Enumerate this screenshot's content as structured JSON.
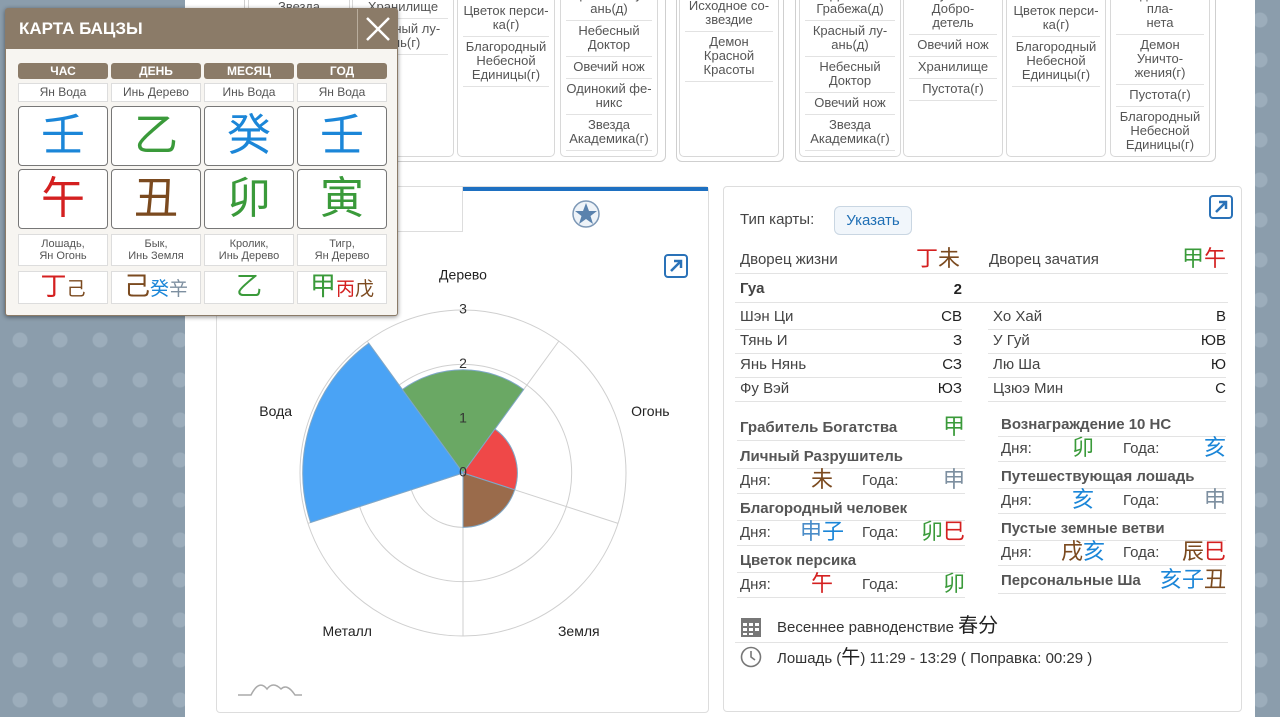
{
  "top_stars": {
    "columns": [
      [
        "Звезда"
      ],
      [
        "Хранилище",
        "Красный лу-\nань(г)"
      ],
      [
        "Цветок перси-\nка(г)",
        "Благородный\nНебесной\nЕдиницы(г)"
      ],
      [
        "Красный лу-\nань(д)",
        "Небесный\nДоктор",
        "Овечий нож",
        "Одинокий фе-\nникс",
        "Звезда\nАкадемика(г)"
      ],
      [
        "Исходное со-\nзвездие",
        "Демон\nКрасной\nКрасоты"
      ],
      [
        "Демон\nГрабежа(д)",
        "Красный лу-\nань(д)",
        "Небесный\nДоктор",
        "Овечий нож",
        "Звезда\nАкадемика(г)"
      ],
      [
        "Лунная Добро-\nдетель",
        "Овечий нож",
        "Хранилище",
        "Пустота(г)"
      ],
      [
        "Цветок перси-\nка(г)",
        "Благородный\nНебесной\nЕдиницы(г)"
      ],
      [
        "Одинокая пла-\nнета",
        "Демон Уничто-\nжения(г)",
        "Пустота(г)",
        "Благородный\nНебесной\nЕдиницы(г)"
      ]
    ]
  },
  "bazi": {
    "title": "КАРТА БАЦЗЫ",
    "pillars": [
      {
        "header": "ЧАС",
        "stem_name": "Ян Вода",
        "stem": {
          "t": "壬",
          "c": "#1b86d8"
        },
        "branch": {
          "t": "午",
          "c": "#d42020"
        },
        "branch_name": "Лошадь,\nЯн Огонь",
        "hidden": [
          {
            "t": "丁",
            "c": "#d42020"
          },
          {
            "t": "己",
            "c": "#7b4a1f"
          }
        ]
      },
      {
        "header": "ДЕНЬ",
        "stem_name": "Инь Дерево",
        "stem": {
          "t": "乙",
          "c": "#3a9a3a"
        },
        "branch": {
          "t": "丑",
          "c": "#7b4a1f"
        },
        "branch_name": "Бык,\nИнь Земля",
        "hidden": [
          {
            "t": "己",
            "c": "#7b4a1f"
          },
          {
            "t": "癸",
            "c": "#1b86d8"
          },
          {
            "t": "辛",
            "c": "#7d8fa0"
          }
        ]
      },
      {
        "header": "МЕСЯЦ",
        "stem_name": "Инь Вода",
        "stem": {
          "t": "癸",
          "c": "#1b86d8"
        },
        "branch": {
          "t": "卯",
          "c": "#3a9a3a"
        },
        "branch_name": "Кролик,\nИнь Дерево",
        "hidden": [
          {
            "t": "乙",
            "c": "#3a9a3a"
          }
        ]
      },
      {
        "header": "ГОД",
        "stem_name": "Ян Вода",
        "stem": {
          "t": "壬",
          "c": "#1b86d8"
        },
        "branch": {
          "t": "寅",
          "c": "#3a9a3a"
        },
        "branch_name": "Тигр,\nЯн Дерево",
        "hidden": [
          {
            "t": "甲",
            "c": "#3a9a3a"
          },
          {
            "t": "丙",
            "c": "#d42020"
          },
          {
            "t": "戊",
            "c": "#7b4a1f"
          }
        ]
      }
    ]
  },
  "chart_data": {
    "type": "polar",
    "categories": [
      "Дерево",
      "Огонь",
      "Земля",
      "Металл",
      "Вода"
    ],
    "values": [
      1.9,
      1,
      1,
      0,
      2.95
    ],
    "colors": [
      "#6aa864",
      "#ef4848",
      "#9a6b4b",
      "#9e9e9e",
      "#4aa3f5"
    ],
    "rlim": [
      0,
      3
    ],
    "rticks": [
      0,
      1,
      2,
      3
    ],
    "grid": true
  },
  "right": {
    "chart_type_label": "Тип карты:",
    "chart_type_button": "Указать",
    "palaces": [
      {
        "label": "Дворец жизни",
        "glyphs": [
          {
            "t": "丁",
            "c": "#d42020"
          },
          {
            "t": "未",
            "c": "#7b4a1f"
          }
        ]
      },
      {
        "label": "Дворец зачатия",
        "glyphs": [
          {
            "t": "甲",
            "c": "#3a9a3a"
          },
          {
            "t": "午",
            "c": "#d42020"
          }
        ]
      }
    ],
    "gua": {
      "label": "Гуа",
      "value": 2
    },
    "directions": [
      {
        "name": "Шэн Ци",
        "dir": "СВ"
      },
      {
        "name": "Хо Хай",
        "dir": "В"
      },
      {
        "name": "Тянь И",
        "dir": "З"
      },
      {
        "name": "У Гуй",
        "dir": "ЮВ"
      },
      {
        "name": "Янь Нянь",
        "dir": "СЗ"
      },
      {
        "name": "Лю Ша",
        "dir": "Ю"
      },
      {
        "name": "Фу Вэй",
        "dir": "ЮЗ"
      },
      {
        "name": "Цзюэ Мин",
        "dir": "С"
      }
    ],
    "day_label": "Дня:",
    "year_label": "Года:",
    "stars_left": [
      {
        "name": "Грабитель Богатства",
        "glyphs": [
          {
            "t": "甲",
            "c": "#3a9a3a"
          }
        ]
      },
      {
        "name": "Личный Разрушитель",
        "day": [
          {
            "t": "未",
            "c": "#7b4a1f"
          }
        ],
        "year": [
          {
            "t": "申",
            "c": "#7d8fa0"
          }
        ]
      },
      {
        "name": "Благородный человек",
        "day": [
          {
            "t": "申",
            "c": "#4a8cc8"
          },
          {
            "t": "子",
            "c": "#1b86d8"
          }
        ],
        "year": [
          {
            "t": "卯",
            "c": "#3a9a3a"
          },
          {
            "t": "巳",
            "c": "#d42020"
          }
        ]
      },
      {
        "name": "Цветок персика",
        "day": [
          {
            "t": "午",
            "c": "#d42020"
          }
        ],
        "year": [
          {
            "t": "卯",
            "c": "#3a9a3a"
          }
        ]
      }
    ],
    "stars_right": [
      {
        "name": "Вознаграждение 10 НС",
        "day": [
          {
            "t": "卯",
            "c": "#3a9a3a"
          }
        ],
        "year": [
          {
            "t": "亥",
            "c": "#1b86d8"
          }
        ]
      },
      {
        "name": "Путешествующая лошадь",
        "day": [
          {
            "t": "亥",
            "c": "#1b86d8"
          }
        ],
        "year": [
          {
            "t": "申",
            "c": "#7d8fa0"
          }
        ]
      },
      {
        "name": "Пустые земные ветви",
        "day": [
          {
            "t": "戌",
            "c": "#7b4a1f"
          },
          {
            "t": "亥",
            "c": "#1b86d8"
          }
        ],
        "year": [
          {
            "t": "辰",
            "c": "#7b4a1f"
          },
          {
            "t": "巳",
            "c": "#d42020"
          }
        ]
      },
      {
        "name": "Персональные Ша",
        "glyphs": [
          {
            "t": "亥",
            "c": "#1b86d8"
          },
          {
            "t": "子",
            "c": "#1b86d8"
          },
          {
            "t": "丑",
            "c": "#7b4a1f"
          }
        ]
      }
    ],
    "solar_term": {
      "label": "Весеннее равноденствие",
      "glyph": "春分"
    },
    "hour": {
      "prefix": "Лошадь (",
      "glyph": "午",
      "suffix": ") 11:29 - 13:29 ( Поправка: 00:29 )"
    }
  }
}
